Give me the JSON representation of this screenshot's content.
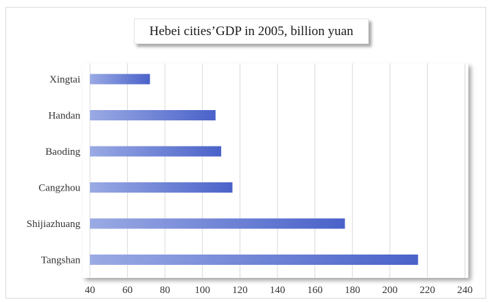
{
  "chart_data": {
    "type": "bar",
    "orientation": "horizontal",
    "title": "Hebei cities’GDP in 2005, billion yuan",
    "categories": [
      "Xingtai",
      "Handan",
      "Baoding",
      "Cangzhou",
      "Shijiazhuang",
      "Tangshan"
    ],
    "values": [
      72,
      107,
      110,
      116,
      176,
      215
    ],
    "xlim": [
      40,
      240
    ],
    "xticks": [
      40,
      60,
      80,
      100,
      120,
      140,
      160,
      180,
      200,
      220,
      240
    ],
    "xlabel": "",
    "ylabel": "",
    "grid": "vertical",
    "legend": "none",
    "colors": {
      "bar_start": "#9aaae4",
      "bar_end": "#4a62c9",
      "grid": "#d9d9d9"
    }
  }
}
